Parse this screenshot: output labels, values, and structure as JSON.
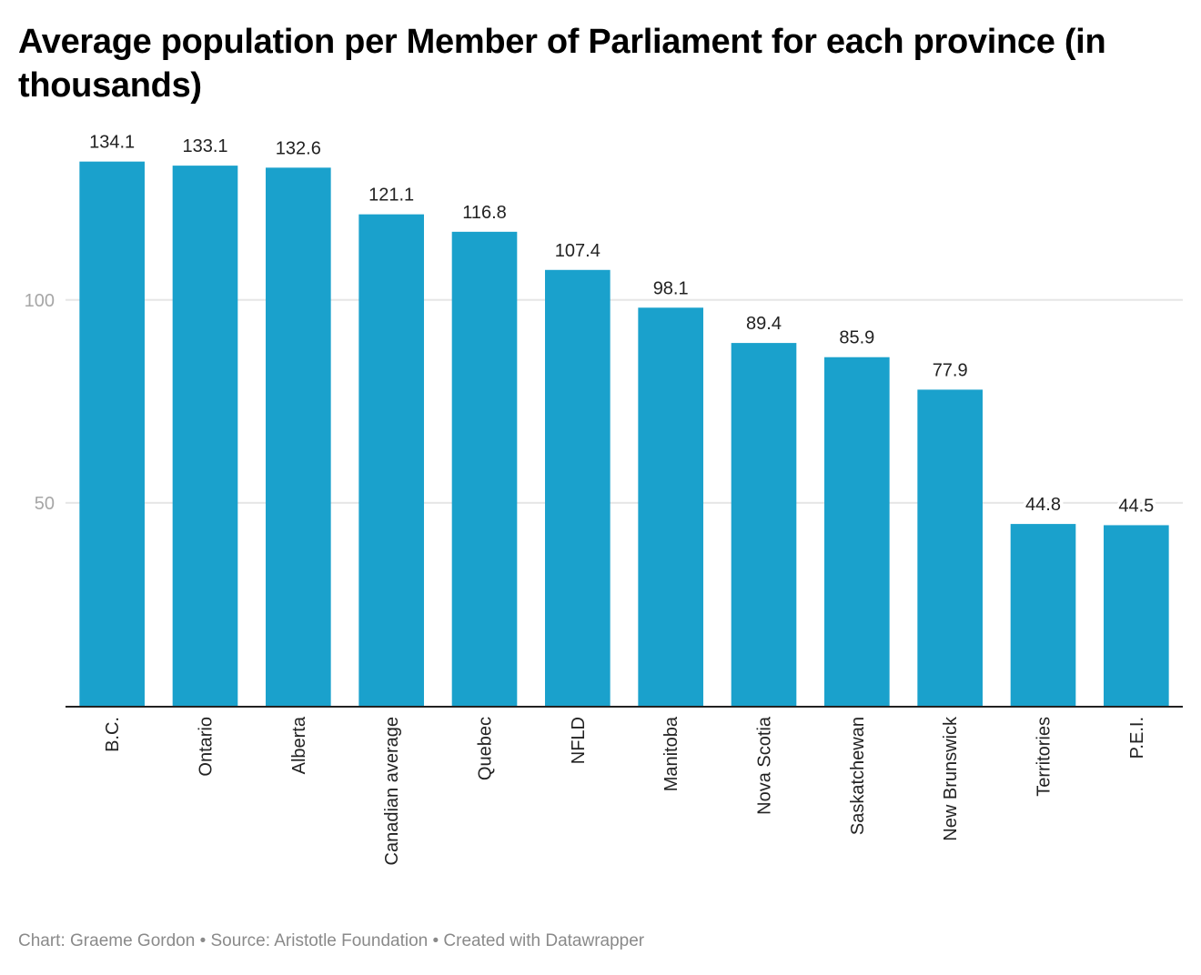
{
  "title": "Average population per Member of Parliament for each province (in thousands)",
  "footer": "Chart: Graeme Gordon • Source: Aristotle Foundation • Created with Datawrapper",
  "colors": {
    "bar": "#1aa1cc",
    "grid": "#e6e6e6",
    "axis": "#222222",
    "tick_text": "#a6a6a6",
    "label_text": "#222222",
    "footer_text": "#8a8a8a"
  },
  "chart_data": {
    "type": "bar",
    "title": "Average population per Member of Parliament for each province (in thousands)",
    "xlabel": "",
    "ylabel": "",
    "categories": [
      "B.C.",
      "Ontario",
      "Alberta",
      "Canadian average",
      "Quebec",
      "NFLD",
      "Manitoba",
      "Nova Scotia",
      "Saskatchewan",
      "New Brunswick",
      "Territories",
      "P.E.I."
    ],
    "values": [
      134.1,
      133.1,
      132.6,
      121.1,
      116.8,
      107.4,
      98.1,
      89.4,
      85.9,
      77.9,
      44.8,
      44.5
    ],
    "value_labels": [
      "134.1",
      "133.1",
      "132.6",
      "121.1",
      "116.8",
      "107.4",
      "98.1",
      "89.4",
      "85.9",
      "77.9",
      "44.8",
      "44.5"
    ],
    "yticks": [
      50,
      100
    ],
    "ytick_labels": [
      "50",
      "100"
    ],
    "ylim": [
      0,
      134.1
    ],
    "grid": true,
    "legend": "none",
    "x_label_rotation": "vertical"
  }
}
